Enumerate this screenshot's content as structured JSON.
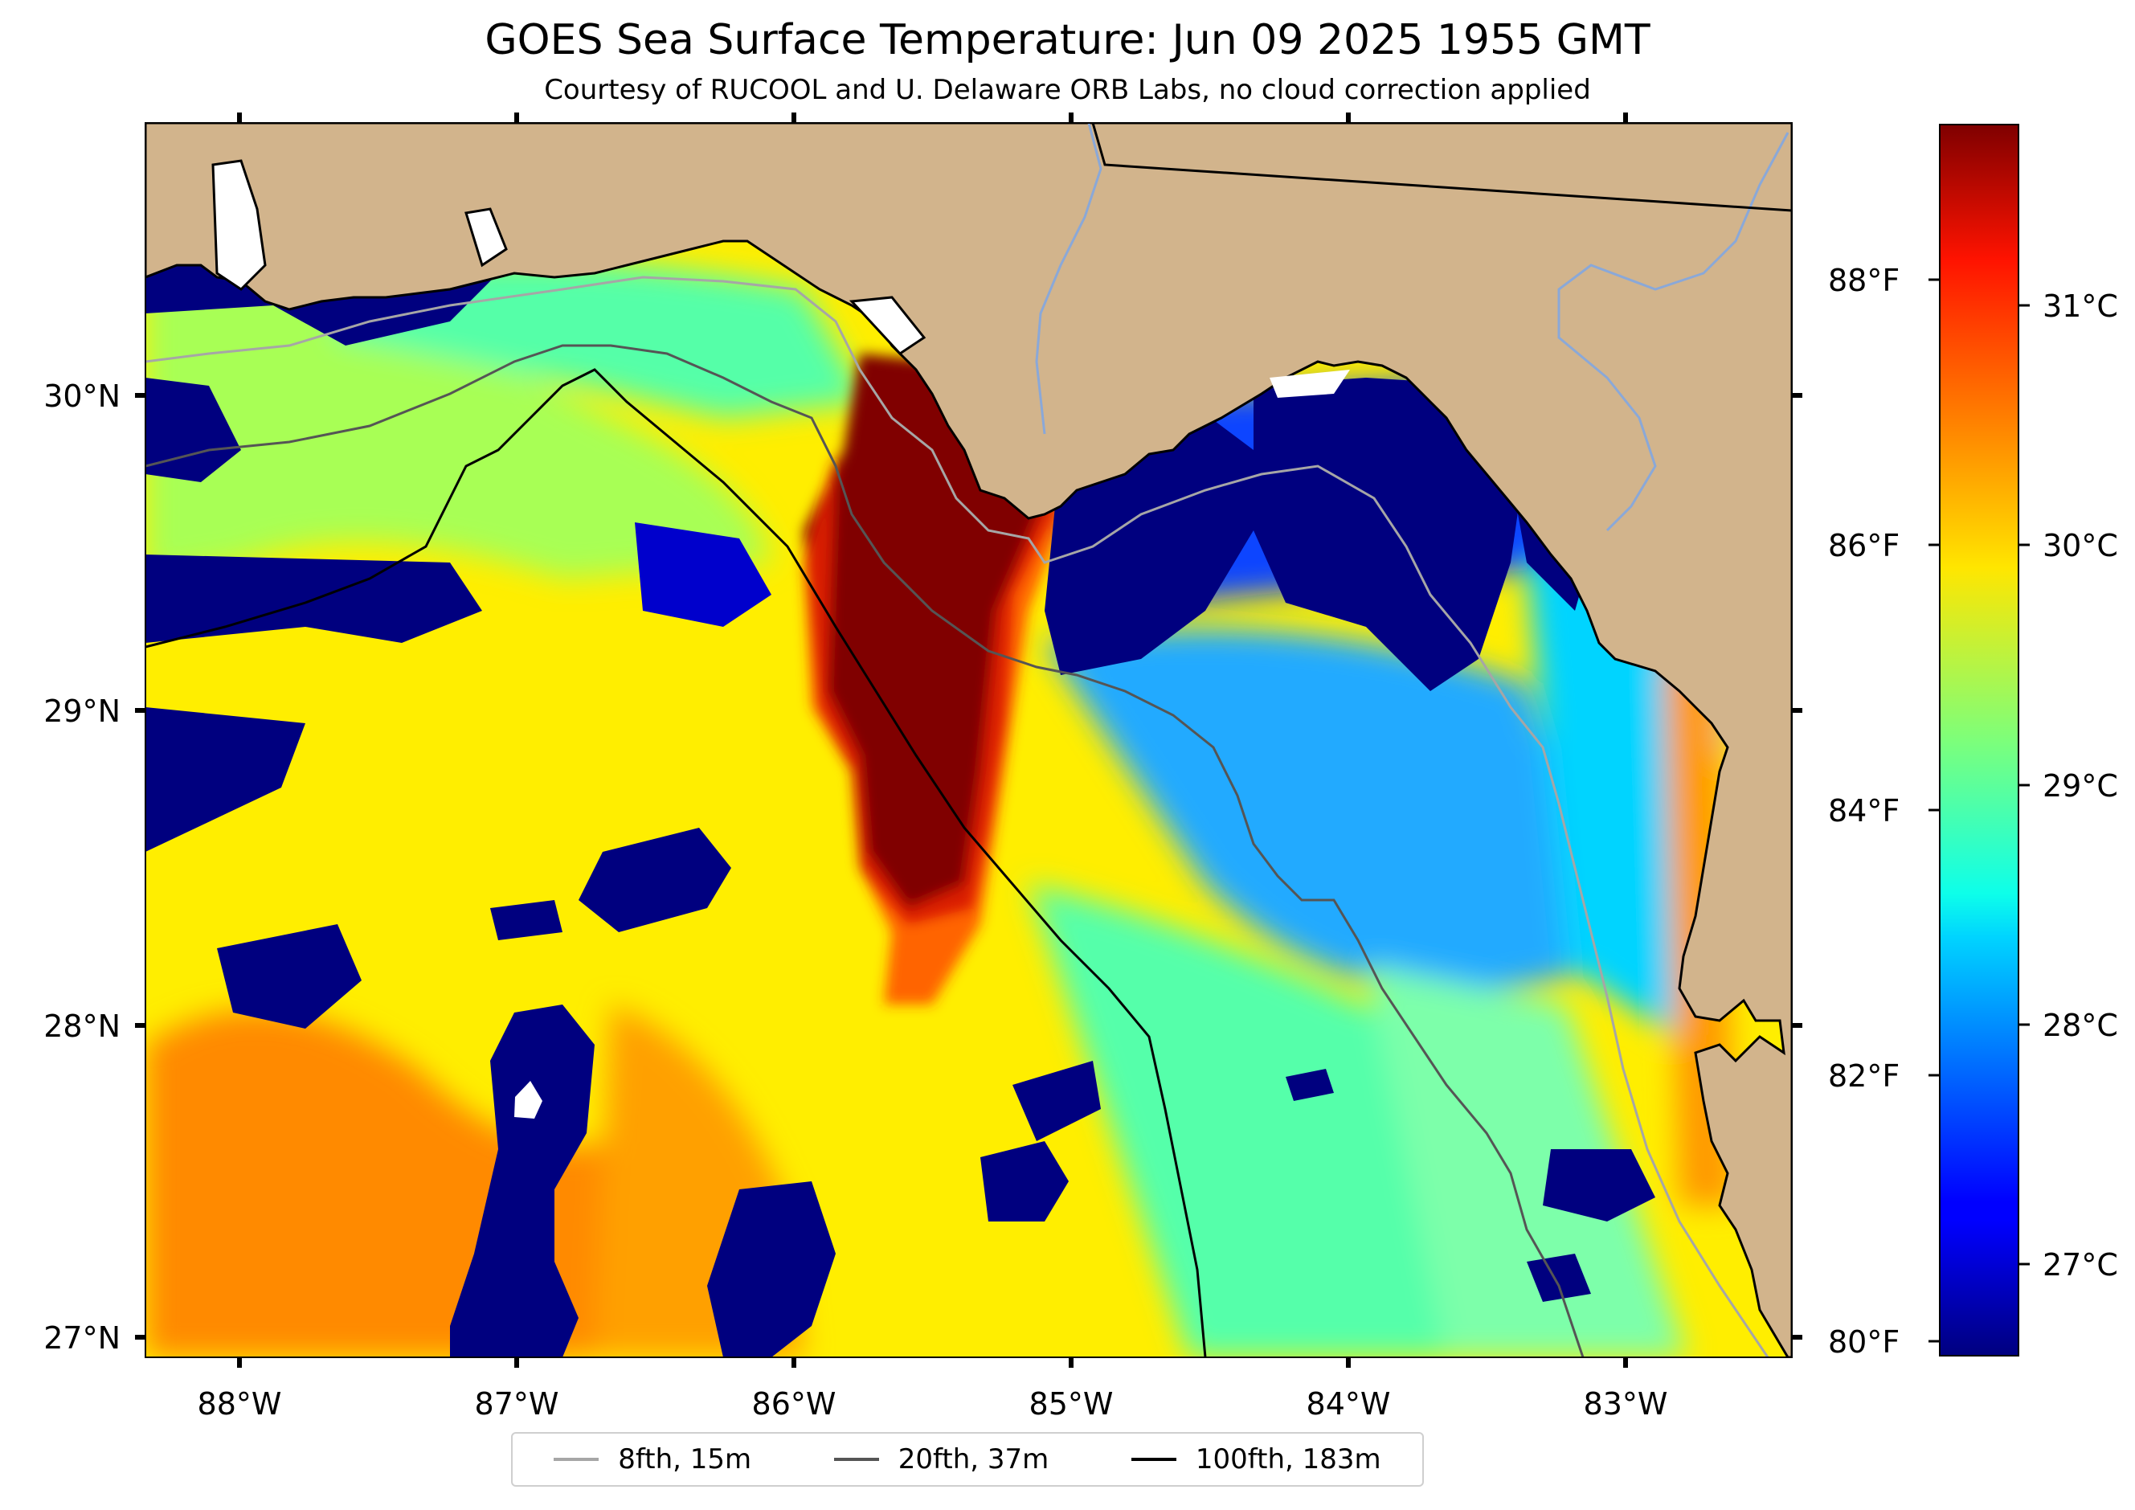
{
  "header": {
    "title": "GOES Sea Surface Temperature: Jun 09 2025 1955 GMT",
    "subtitle": "Courtesy of RUCOOL and U. Delaware ORB Labs, no cloud correction applied"
  },
  "map": {
    "longitude_labels": [
      "88°W",
      "87°W",
      "86°W",
      "85°W",
      "84°W",
      "83°W"
    ],
    "latitude_labels": [
      "30°N",
      "29°N",
      "28°N",
      "27°N"
    ],
    "land_color": "#d2b48c",
    "colormap": "jet"
  },
  "colorbar": {
    "fahrenheit_labels": [
      "88°F",
      "86°F",
      "84°F",
      "82°F",
      "80°F"
    ],
    "celsius_labels": [
      "31°C",
      "30°C",
      "29°C",
      "28°C",
      "27°C"
    ],
    "range_celsius": [
      26.6,
      31.7
    ]
  },
  "legend": {
    "items": [
      {
        "label": "8fth, 15m",
        "color": "#a6a6a6"
      },
      {
        "label": "20fth, 37m",
        "color": "#555555"
      },
      {
        "label": "100fth, 183m",
        "color": "#000000"
      }
    ]
  }
}
